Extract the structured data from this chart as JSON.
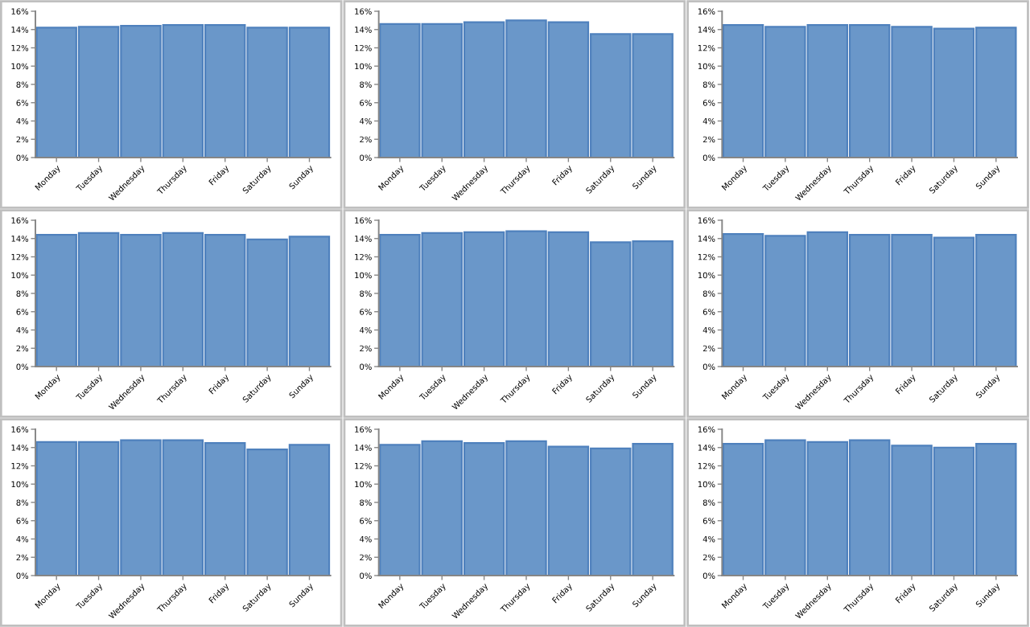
{
  "chart_data": [
    {
      "type": "bar",
      "categories": [
        "Monday",
        "Tuesday",
        "Wednesday",
        "Thursday",
        "Friday",
        "Saturday",
        "Sunday"
      ],
      "values": [
        14.2,
        14.3,
        14.4,
        14.5,
        14.5,
        14.2,
        14.2
      ],
      "color": "#6a97c9",
      "ylim": [
        0,
        16
      ],
      "yticks": [
        {
          "value": 0,
          "label": "0%"
        },
        {
          "value": 2,
          "label": "2%"
        },
        {
          "value": 4,
          "label": "4%"
        },
        {
          "value": 6,
          "label": "6%"
        },
        {
          "value": 8,
          "label": "8%"
        },
        {
          "value": 10,
          "label": "10%"
        },
        {
          "value": 12,
          "label": "12%"
        },
        {
          "value": 14,
          "label": "14%"
        },
        {
          "value": 16,
          "label": "16%"
        }
      ],
      "grid": false,
      "legend": false
    },
    {
      "type": "bar",
      "categories": [
        "Monday",
        "Tuesday",
        "Wednesday",
        "Thursday",
        "Friday",
        "Saturday",
        "Sunday"
      ],
      "values": [
        14.6,
        14.6,
        14.8,
        15.0,
        14.8,
        13.5,
        13.5
      ],
      "color": "#6a97c9",
      "ylim": [
        0,
        16
      ],
      "yticks": [
        {
          "value": 0,
          "label": "0%"
        },
        {
          "value": 2,
          "label": "2%"
        },
        {
          "value": 4,
          "label": "4%"
        },
        {
          "value": 6,
          "label": "6%"
        },
        {
          "value": 8,
          "label": "8%"
        },
        {
          "value": 10,
          "label": "10%"
        },
        {
          "value": 12,
          "label": "12%"
        },
        {
          "value": 14,
          "label": "14%"
        },
        {
          "value": 16,
          "label": "16%"
        }
      ],
      "grid": false,
      "legend": false
    },
    {
      "type": "bar",
      "categories": [
        "Monday",
        "Tuesday",
        "Wednesday",
        "Thursday",
        "Friday",
        "Saturday",
        "Sunday"
      ],
      "values": [
        14.5,
        14.3,
        14.5,
        14.5,
        14.3,
        14.1,
        14.2
      ],
      "color": "#6a97c9",
      "ylim": [
        0,
        16
      ],
      "yticks": [
        {
          "value": 0,
          "label": "0%"
        },
        {
          "value": 2,
          "label": "2%"
        },
        {
          "value": 4,
          "label": "4%"
        },
        {
          "value": 6,
          "label": "6%"
        },
        {
          "value": 8,
          "label": "8%"
        },
        {
          "value": 10,
          "label": "10%"
        },
        {
          "value": 12,
          "label": "12%"
        },
        {
          "value": 14,
          "label": "14%"
        },
        {
          "value": 16,
          "label": "16%"
        }
      ],
      "grid": false,
      "legend": false
    },
    {
      "type": "bar",
      "categories": [
        "Monday",
        "Tuesday",
        "Wednesday",
        "Thursday",
        "Friday",
        "Saturday",
        "Sunday"
      ],
      "values": [
        14.4,
        14.6,
        14.4,
        14.6,
        14.4,
        13.9,
        14.2
      ],
      "color": "#6a97c9",
      "ylim": [
        0,
        16
      ],
      "yticks": [
        {
          "value": 0,
          "label": "0%"
        },
        {
          "value": 2,
          "label": "2%"
        },
        {
          "value": 4,
          "label": "4%"
        },
        {
          "value": 6,
          "label": "6%"
        },
        {
          "value": 8,
          "label": "8%"
        },
        {
          "value": 10,
          "label": "10%"
        },
        {
          "value": 12,
          "label": "12%"
        },
        {
          "value": 14,
          "label": "14%"
        },
        {
          "value": 16,
          "label": "16%"
        }
      ],
      "grid": false,
      "legend": false
    },
    {
      "type": "bar",
      "categories": [
        "Monday",
        "Tuesday",
        "Wednesday",
        "Thursday",
        "Friday",
        "Saturday",
        "Sunday"
      ],
      "values": [
        14.4,
        14.6,
        14.7,
        14.8,
        14.7,
        13.6,
        13.7
      ],
      "color": "#6a97c9",
      "ylim": [
        0,
        16
      ],
      "yticks": [
        {
          "value": 0,
          "label": "0%"
        },
        {
          "value": 2,
          "label": "2%"
        },
        {
          "value": 4,
          "label": "4%"
        },
        {
          "value": 6,
          "label": "6%"
        },
        {
          "value": 8,
          "label": "8%"
        },
        {
          "value": 10,
          "label": "10%"
        },
        {
          "value": 12,
          "label": "12%"
        },
        {
          "value": 14,
          "label": "14%"
        },
        {
          "value": 16,
          "label": "16%"
        }
      ],
      "grid": false,
      "legend": false
    },
    {
      "type": "bar",
      "categories": [
        "Monday",
        "Tuesday",
        "Wednesday",
        "Thursday",
        "Friday",
        "Saturday",
        "Sunday"
      ],
      "values": [
        14.5,
        14.3,
        14.7,
        14.4,
        14.4,
        14.1,
        14.4
      ],
      "color": "#6a97c9",
      "ylim": [
        0,
        16
      ],
      "yticks": [
        {
          "value": 0,
          "label": "0%"
        },
        {
          "value": 2,
          "label": "2%"
        },
        {
          "value": 4,
          "label": "4%"
        },
        {
          "value": 6,
          "label": "6%"
        },
        {
          "value": 8,
          "label": "8%"
        },
        {
          "value": 10,
          "label": "10%"
        },
        {
          "value": 12,
          "label": "12%"
        },
        {
          "value": 14,
          "label": "14%"
        },
        {
          "value": 16,
          "label": "16%"
        }
      ],
      "grid": false,
      "legend": false
    },
    {
      "type": "bar",
      "categories": [
        "Monday",
        "Tuesday",
        "Wednesday",
        "Thursday",
        "Friday",
        "Saturday",
        "Sunday"
      ],
      "values": [
        14.6,
        14.6,
        14.8,
        14.8,
        14.5,
        13.8,
        14.3
      ],
      "color": "#6a97c9",
      "ylim": [
        0,
        16
      ],
      "yticks": [
        {
          "value": 0,
          "label": "0%"
        },
        {
          "value": 2,
          "label": "2%"
        },
        {
          "value": 4,
          "label": "4%"
        },
        {
          "value": 6,
          "label": "6%"
        },
        {
          "value": 8,
          "label": "8%"
        },
        {
          "value": 10,
          "label": "10%"
        },
        {
          "value": 12,
          "label": "12%"
        },
        {
          "value": 14,
          "label": "14%"
        },
        {
          "value": 16,
          "label": "16%"
        }
      ],
      "grid": false,
      "legend": false
    },
    {
      "type": "bar",
      "categories": [
        "Monday",
        "Tuesday",
        "Wednesday",
        "Thursday",
        "Friday",
        "Saturday",
        "Sunday"
      ],
      "values": [
        14.3,
        14.7,
        14.5,
        14.7,
        14.1,
        13.9,
        14.4
      ],
      "color": "#6a97c9",
      "ylim": [
        0,
        16
      ],
      "yticks": [
        {
          "value": 0,
          "label": "0%"
        },
        {
          "value": 2,
          "label": "2%"
        },
        {
          "value": 4,
          "label": "4%"
        },
        {
          "value": 6,
          "label": "6%"
        },
        {
          "value": 8,
          "label": "8%"
        },
        {
          "value": 10,
          "label": "10%"
        },
        {
          "value": 12,
          "label": "12%"
        },
        {
          "value": 14,
          "label": "14%"
        },
        {
          "value": 16,
          "label": "16%"
        }
      ],
      "grid": false,
      "legend": false
    },
    {
      "type": "bar",
      "categories": [
        "Monday",
        "Tuesday",
        "Wednesday",
        "Thursday",
        "Friday",
        "Saturday",
        "Sunday"
      ],
      "values": [
        14.4,
        14.8,
        14.6,
        14.8,
        14.2,
        14.0,
        14.4
      ],
      "color": "#6a97c9",
      "ylim": [
        0,
        16
      ],
      "yticks": [
        {
          "value": 0,
          "label": "0%"
        },
        {
          "value": 2,
          "label": "2%"
        },
        {
          "value": 4,
          "label": "4%"
        },
        {
          "value": 6,
          "label": "6%"
        },
        {
          "value": 8,
          "label": "8%"
        },
        {
          "value": 10,
          "label": "10%"
        },
        {
          "value": 12,
          "label": "12%"
        },
        {
          "value": 14,
          "label": "14%"
        },
        {
          "value": 16,
          "label": "16%"
        }
      ],
      "grid": false,
      "legend": false
    }
  ]
}
